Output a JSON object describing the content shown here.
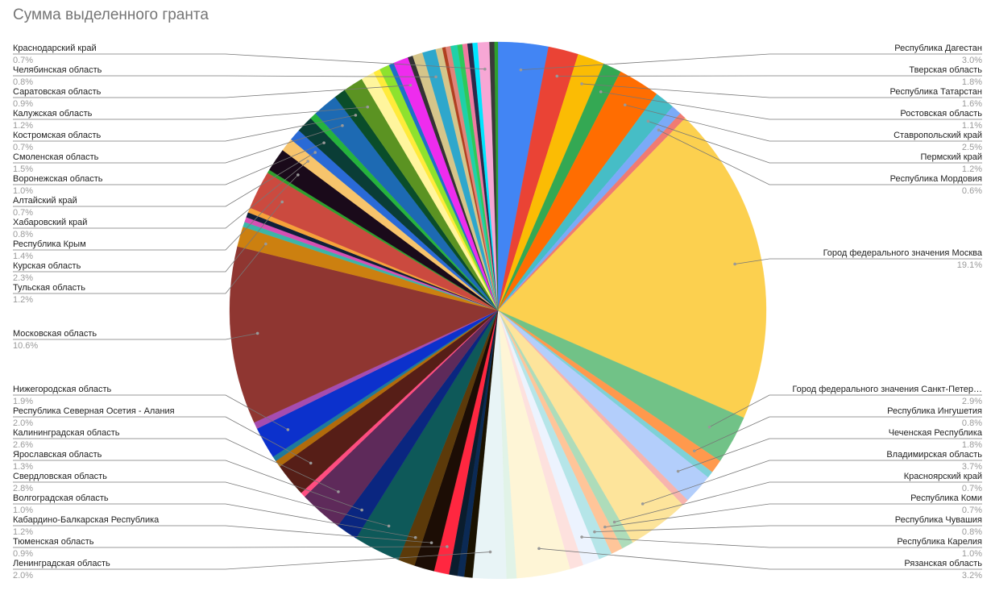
{
  "chart_data": {
    "type": "pie",
    "title": "Сумма выделенного гранта",
    "categories": [
      "Республика Дагестан",
      "Тверская область",
      "Республика Татарстан",
      "Ростовская область",
      "Ставропольский край",
      "Пермский край",
      "Республика Мордовия",
      null,
      "Город федерального значения Москва",
      "Город федерального значения Санкт-Петер…",
      "Республика Ингушетия",
      null,
      "Чеченская Республика",
      null,
      "Владимирская область",
      "Красноярский край",
      "Республика Коми",
      "Республика Чувашия",
      "Республика Карелия",
      null,
      "Рязанская область",
      null,
      "Ленинградская область",
      null,
      null,
      null,
      "Тюменская область",
      "Кабардино-Балкарская Республика",
      "Волгоградская область",
      "Свердловская область",
      "Ярославская область",
      "Калининградская область",
      null,
      "Республика Северная Осетия - Алания",
      null,
      null,
      "Нижегородская область",
      null,
      "Московская область",
      "Тульская область",
      null,
      null,
      null,
      null,
      "Курская область",
      null,
      "Республика Крым",
      "Хабаровский край",
      "Алтайский край",
      "Воронежская область",
      null,
      "Смоленская область",
      "Костромская область",
      "Калужская область",
      null,
      null,
      null,
      null,
      "Саратовская область",
      null,
      null,
      "Челябинская область",
      null,
      null,
      null,
      null,
      null,
      null,
      null,
      null,
      "Краснодарский край",
      null,
      null
    ],
    "values": [
      3.0,
      1.8,
      1.6,
      1.1,
      2.5,
      1.2,
      0.6,
      0.4,
      19.1,
      2.9,
      0.8,
      0.4,
      1.8,
      0.4,
      3.7,
      0.7,
      0.7,
      0.8,
      1.0,
      0.8,
      3.2,
      0.6,
      2.0,
      0.5,
      0.4,
      0.5,
      0.9,
      1.2,
      1.0,
      2.8,
      1.3,
      2.6,
      0.3,
      2.0,
      0.4,
      0.3,
      1.9,
      0.4,
      10.6,
      1.2,
      0.3,
      0.3,
      0.3,
      0.3,
      2.3,
      0.2,
      1.4,
      0.8,
      0.7,
      1.0,
      0.4,
      1.5,
      0.7,
      1.2,
      0.8,
      0.4,
      0.6,
      0.3,
      0.9,
      0.3,
      0.6,
      0.8,
      0.4,
      0.2,
      0.3,
      0.4,
      0.3,
      0.3,
      0.3,
      0.3,
      0.7,
      0.3,
      0.2
    ],
    "value_labels": [
      "3.0%",
      "1.8%",
      "1.6%",
      "1.1%",
      "2.5%",
      "1.2%",
      "0.6%",
      null,
      "19.1%",
      "2.9%",
      "0.8%",
      null,
      "1.8%",
      null,
      "3.7%",
      "0.7%",
      "0.7%",
      "0.8%",
      "1.0%",
      null,
      "3.2%",
      null,
      "2.0%",
      null,
      null,
      null,
      "0.9%",
      "1.2%",
      "1.0%",
      "2.8%",
      "1.3%",
      "2.6%",
      null,
      "2.0%",
      null,
      null,
      "1.9%",
      null,
      "10.6%",
      "1.2%",
      null,
      null,
      null,
      null,
      "2.3%",
      null,
      "1.4%",
      "0.8%",
      "0.7%",
      "1.0%",
      null,
      "1.5%",
      "0.7%",
      "1.2%",
      null,
      null,
      null,
      null,
      "0.9%",
      null,
      null,
      "0.8%",
      null,
      null,
      null,
      null,
      null,
      null,
      null,
      null,
      "0.7%",
      null,
      null
    ],
    "colors": [
      "#4285f4",
      "#ea4335",
      "#fbbc04",
      "#34a853",
      "#ff6d01",
      "#46bdc6",
      "#7baaf7",
      "#f07b72",
      "#fcd04f",
      "#71c287",
      "#ff994d",
      "#7ed1d7",
      "#b3cefb",
      "#f7b4ae",
      "#fde49b",
      "#aedcba",
      "#ffc599",
      "#b5e5e8",
      "#ecf3fe",
      "#fde1de",
      "#fef5d6",
      "#e1f3e7",
      "#e8f4f6",
      "#1a1200",
      "#0b2a55",
      "#0a1d2e",
      "#ff2740",
      "#1c0d05",
      "#5c3a0a",
      "#0e5959",
      "#0a2680",
      "#5e2a5a",
      "#ff4d80",
      "#561e17",
      "#b16b0b",
      "#1e7a9b",
      "#0c31cc",
      "#a64cb0",
      "#8f3631",
      "#cc8010",
      "#3bb5a8",
      "#d64fb4",
      "#0f1f3a",
      "#f6a13a",
      "#cb4a3f",
      "#2ea02d",
      "#1a0a1a",
      "#f7c46c",
      "#2a6ad6",
      "#0a3d36",
      "#26b33d",
      "#1d6ab3",
      "#0a4d2a",
      "#5b9322",
      "#fff59d",
      "#ffeb3b",
      "#8ee22e",
      "#1e70c8",
      "#ee2cee",
      "#333333",
      "#d5c58a",
      "#2ea7cc",
      "#d5c58a",
      "#b04020",
      "#e0847a",
      "#1fd1a8",
      "#2ec95a",
      "#f07aa0",
      "#2a2a4a",
      "#00e5ff",
      "#f7a7d5",
      "#3a3a3a",
      "#2ea02d"
    ]
  }
}
